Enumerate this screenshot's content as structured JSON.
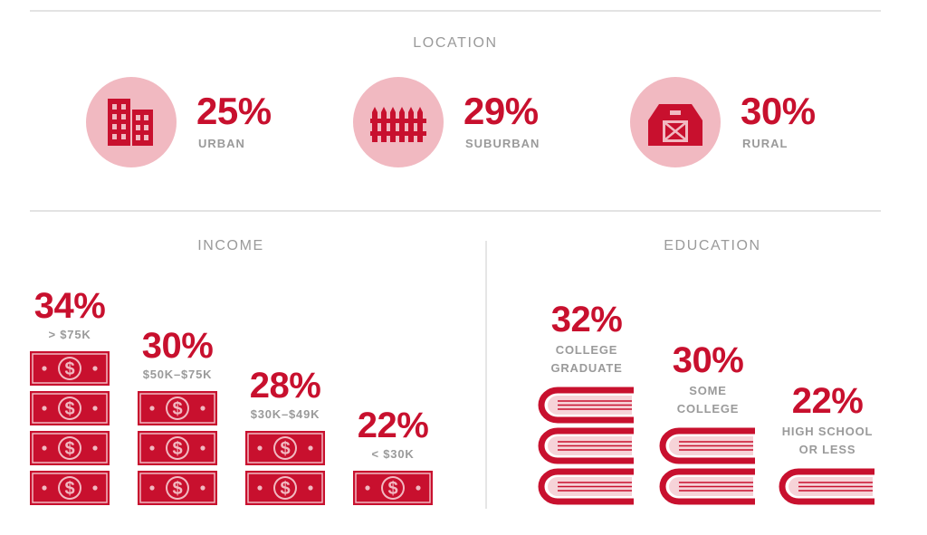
{
  "location": {
    "title": "LOCATION",
    "items": [
      {
        "label": "URBAN",
        "pct": "25%",
        "icon": "buildings-icon"
      },
      {
        "label": "SUBURBAN",
        "pct": "29%",
        "icon": "fence-icon"
      },
      {
        "label": "RURAL",
        "pct": "30%",
        "icon": "barn-icon"
      }
    ]
  },
  "income": {
    "title": "INCOME",
    "items": [
      {
        "label": "> $75K",
        "pct": "34%",
        "bills": 4
      },
      {
        "label": "$50K–$75K",
        "pct": "30%",
        "bills": 3
      },
      {
        "label": "$30K–$49K",
        "pct": "28%",
        "bills": 2
      },
      {
        "label": "< $30K",
        "pct": "22%",
        "bills": 1
      }
    ]
  },
  "education": {
    "title": "EDUCATION",
    "items": [
      {
        "label_lines": [
          "COLLEGE",
          "GRADUATE"
        ],
        "pct": "32%",
        "books": 3
      },
      {
        "label_lines": [
          "SOME",
          "COLLEGE"
        ],
        "pct": "30%",
        "books": 2
      },
      {
        "label_lines": [
          "HIGH SCHOOL",
          "OR LESS"
        ],
        "pct": "22%",
        "books": 1
      }
    ]
  },
  "colors": {
    "accent": "#c8102e",
    "light": "#f1b9c1",
    "muted": "#9a9a9a",
    "rule": "#e3e3e3"
  },
  "chart_data": [
    {
      "type": "bar",
      "title": "LOCATION",
      "categories": [
        "URBAN",
        "SUBURBAN",
        "RURAL"
      ],
      "values": [
        25,
        29,
        30
      ]
    },
    {
      "type": "bar",
      "title": "INCOME",
      "categories": [
        "> $75K",
        "$50K–$75K",
        "$30K–$49K",
        "< $30K"
      ],
      "values": [
        34,
        30,
        28,
        22
      ]
    },
    {
      "type": "bar",
      "title": "EDUCATION",
      "categories": [
        "COLLEGE GRADUATE",
        "SOME COLLEGE",
        "HIGH SCHOOL OR LESS"
      ],
      "values": [
        32,
        30,
        22
      ]
    }
  ]
}
